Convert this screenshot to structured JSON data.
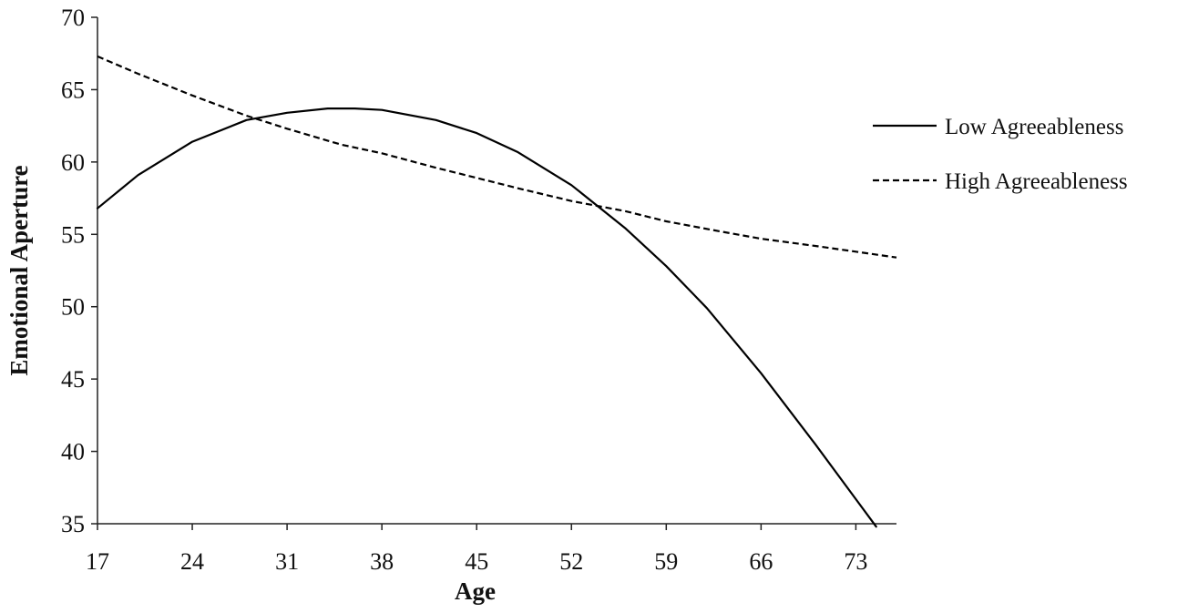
{
  "chart_data": {
    "type": "line",
    "xlabel": "Age",
    "ylabel": "Emotional Aperture",
    "xlim": [
      17,
      76
    ],
    "ylim": [
      35,
      70
    ],
    "x_ticks": [
      17,
      24,
      31,
      38,
      45,
      52,
      59,
      66,
      73
    ],
    "y_ticks": [
      35,
      40,
      45,
      50,
      55,
      60,
      65,
      70
    ],
    "grid": false,
    "legend_position": "right",
    "series": [
      {
        "name": "Low Agreeableness",
        "style": "solid",
        "color": "#000000",
        "x": [
          17,
          20,
          24,
          28,
          31,
          34,
          36,
          38,
          42,
          45,
          48,
          52,
          56,
          59,
          62,
          66,
          70,
          73,
          74.5
        ],
        "y": [
          56.8,
          59.1,
          61.4,
          62.9,
          63.4,
          63.7,
          63.7,
          63.6,
          62.9,
          62.0,
          60.7,
          58.4,
          55.4,
          52.8,
          49.9,
          45.4,
          40.5,
          36.7,
          34.8
        ]
      },
      {
        "name": "High Agreeableness",
        "style": "dashed",
        "color": "#000000",
        "x": [
          17,
          20,
          24,
          28,
          31,
          35,
          38,
          42,
          45,
          48,
          52,
          56,
          59,
          63,
          66,
          70,
          73,
          76
        ],
        "y": [
          67.3,
          66.1,
          64.6,
          63.2,
          62.3,
          61.2,
          60.6,
          59.6,
          58.9,
          58.2,
          57.3,
          56.6,
          55.9,
          55.2,
          54.7,
          54.2,
          53.8,
          53.4
        ]
      }
    ]
  }
}
